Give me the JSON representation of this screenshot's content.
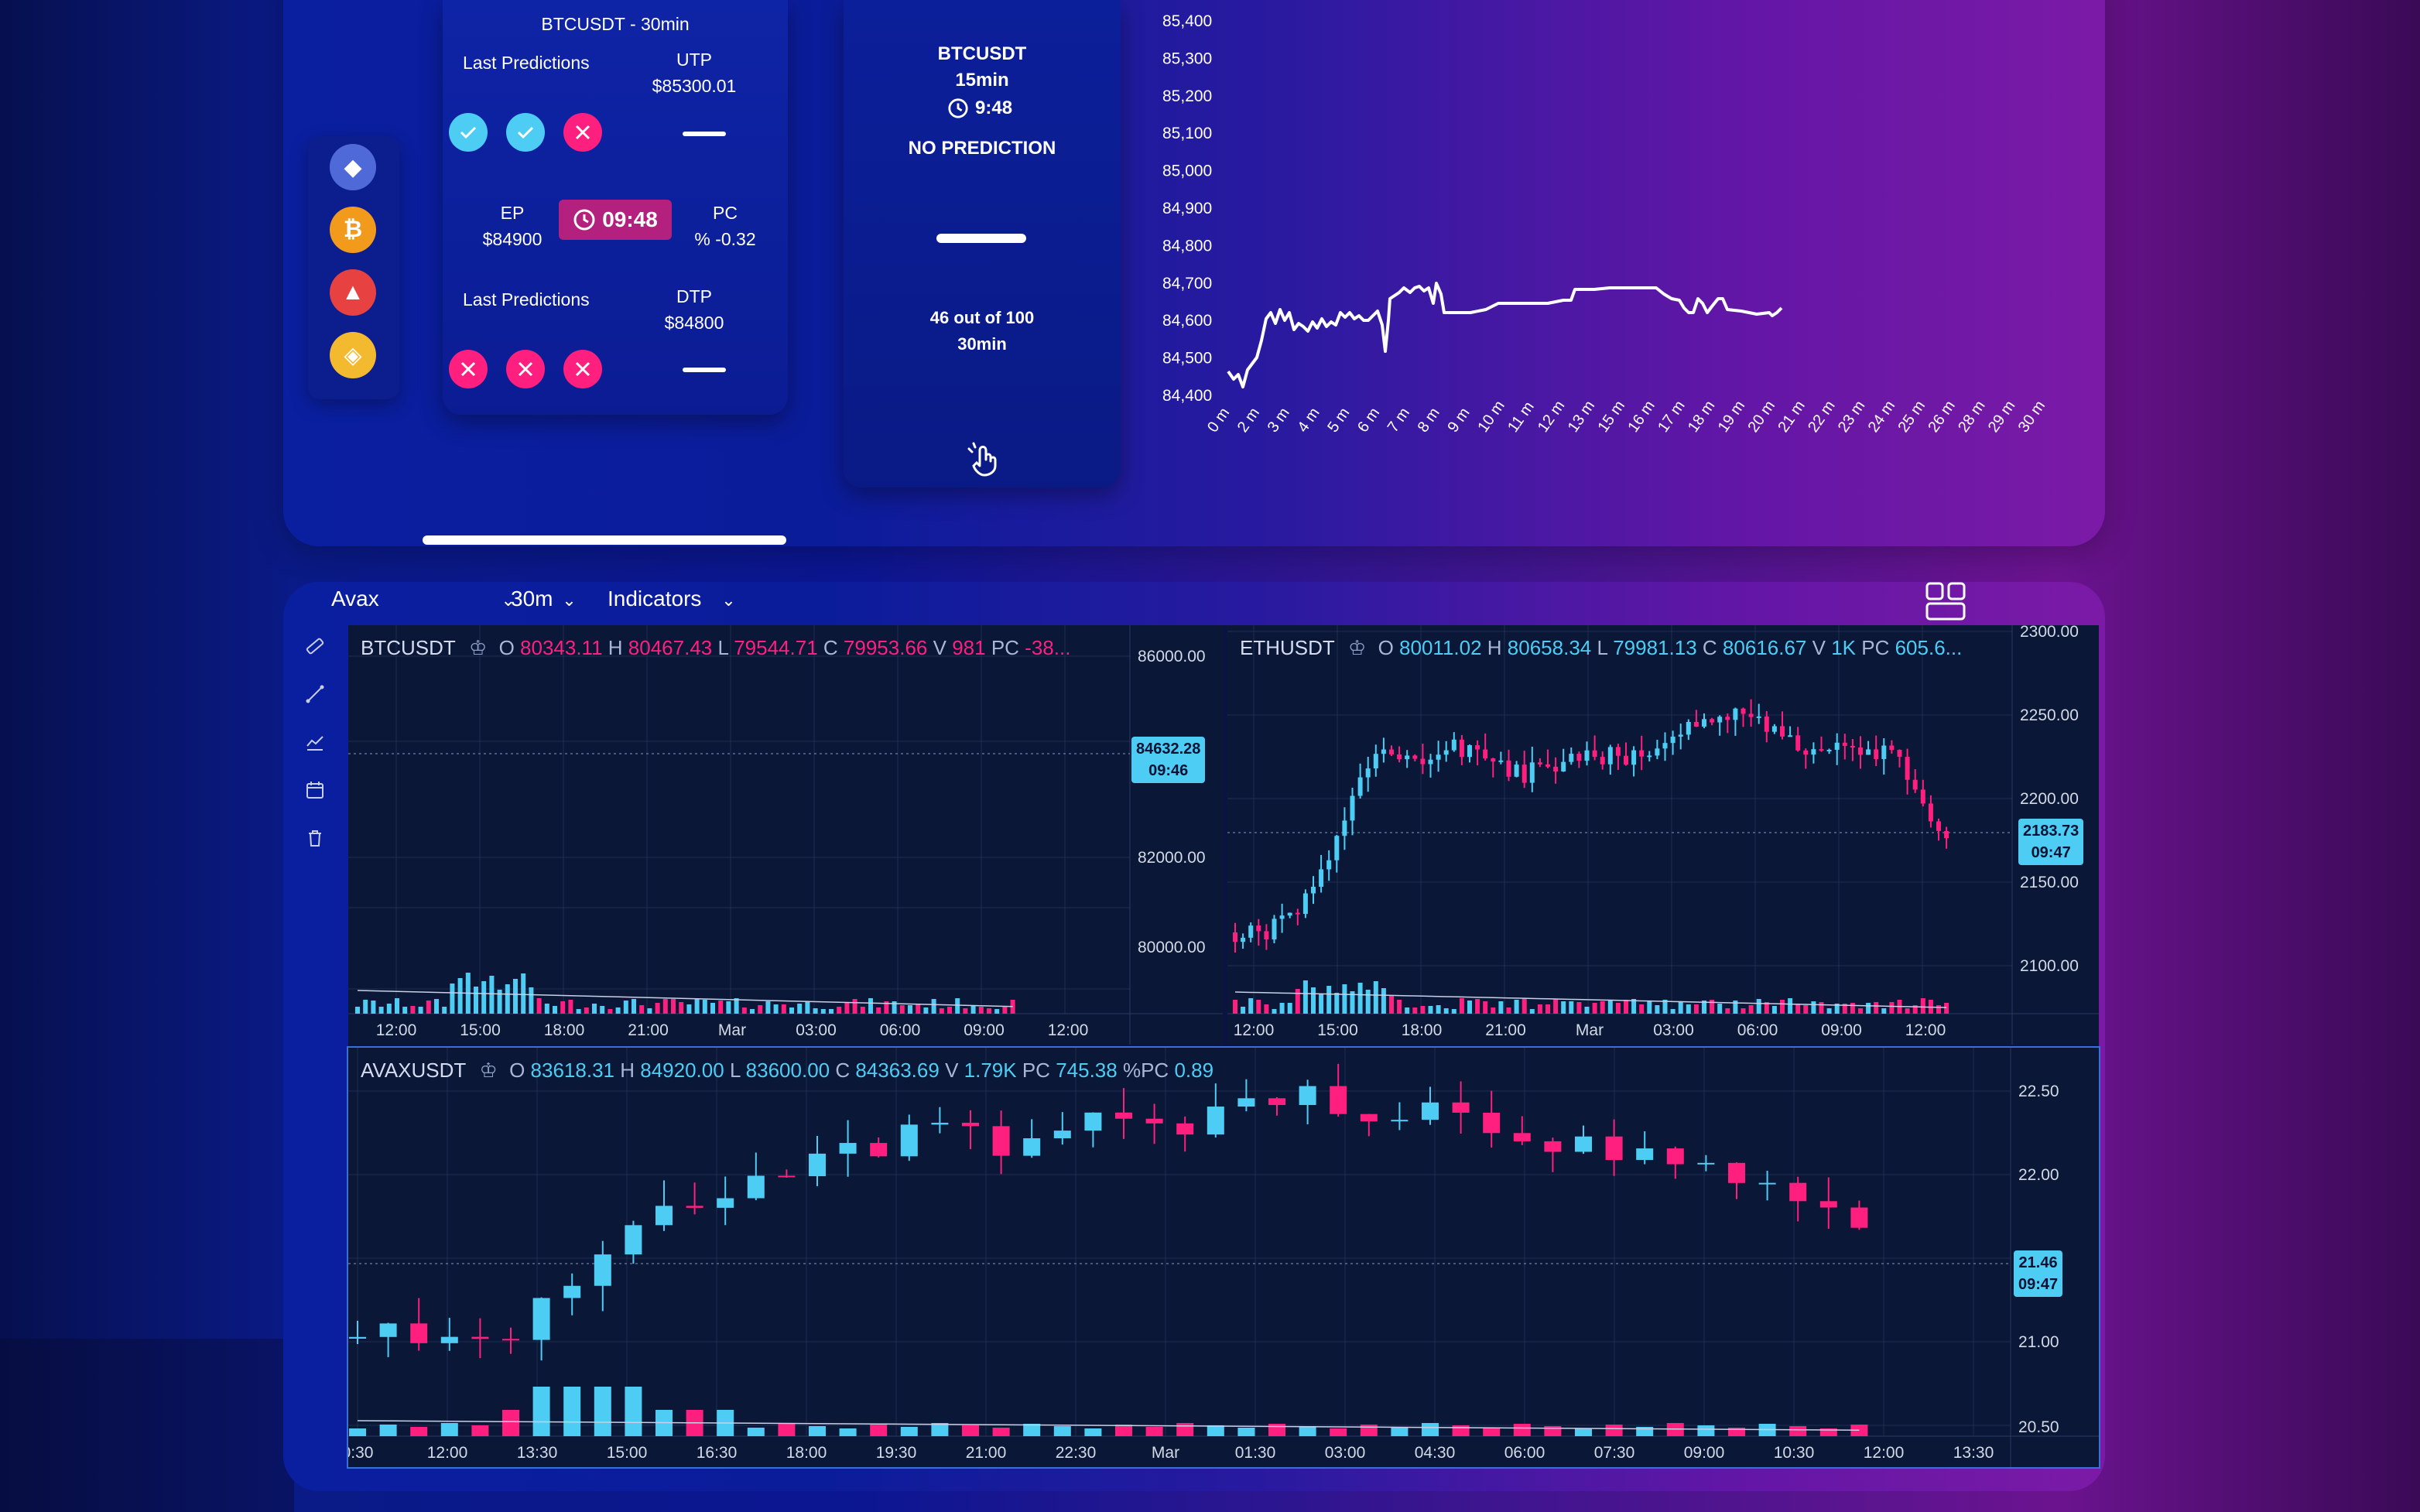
{
  "colors": {
    "up": "#4ecdf4",
    "down": "#ff1f7f",
    "timer_bg": "#b4207e"
  },
  "coins": [
    {
      "name": "ethereum-icon",
      "bg": "#4f6ad8",
      "glyph": "◆"
    },
    {
      "name": "bitcoin-icon",
      "bg": "#f29a1c",
      "glyph": "₿"
    },
    {
      "name": "avalanche-icon",
      "bg": "#e84142",
      "glyph": "▲"
    },
    {
      "name": "bnb-icon",
      "bg": "#f3ba2f",
      "glyph": "◈"
    }
  ],
  "prediction_card": {
    "title": "BTCUSDT - 30min",
    "last_predictions_label_1": "Last Predictions",
    "utp_label": "UTP",
    "utp_value": "$85300.01",
    "badges_row_1": [
      "ok",
      "ok",
      "no"
    ],
    "ep_label": "EP",
    "ep_value": "$84900",
    "timer": "09:48",
    "pc_label": "PC",
    "pc_value": "% -0.32",
    "last_predictions_label_2": "Last Predictions",
    "dtp_label": "DTP",
    "dtp_value": "$84800",
    "badges_row_2": [
      "no",
      "no",
      "no"
    ]
  },
  "no_prediction_card": {
    "symbol": "BTCUSDT",
    "interval": "15min",
    "time": "9:48",
    "status": "NO PREDICTION",
    "count_text": "46 out of 100",
    "count_interval": "30min"
  },
  "top_chart": {
    "y_ticks": [
      "85,400",
      "85,300",
      "85,200",
      "85,100",
      "85,000",
      "84,900",
      "84,800",
      "84,700",
      "84,600",
      "84,500",
      "84,400"
    ],
    "x_ticks": [
      "0 m",
      "2 m",
      "3 m",
      "4 m",
      "5 m",
      "6 m",
      "7 m",
      "8 m",
      "9 m",
      "10 m",
      "11 m",
      "12 m",
      "13 m",
      "15 m",
      "16 m",
      "17 m",
      "18 m",
      "19 m",
      "20 m",
      "21 m",
      "22 m",
      "23 m",
      "24 m",
      "25 m",
      "26 m",
      "28 m",
      "29 m",
      "30 m"
    ]
  },
  "toolbar": {
    "symbol": "Avax",
    "interval": "30m",
    "indicators": "Indicators"
  },
  "btc_pane": {
    "symbol": "BTCUSDT",
    "o": "80343.11",
    "h": "80467.43",
    "l": "79544.71",
    "c": "79953.66",
    "v": "981",
    "pc": "-38...",
    "y_ticks": [
      "86000.00",
      "82000.00",
      "80000.00"
    ],
    "price_tag": "84632.28",
    "price_time": "09:46",
    "x_ticks": [
      "12:00",
      "15:00",
      "18:00",
      "21:00",
      "Mar",
      "03:00",
      "06:00",
      "09:00",
      "12:00"
    ]
  },
  "eth_pane": {
    "symbol": "ETHUSDT",
    "o": "80011.02",
    "h": "80658.34",
    "l": "79981.13",
    "c": "80616.67",
    "v": "1K",
    "pc": "605.6...",
    "y_ticks": [
      "2300.00",
      "2250.00",
      "2200.00",
      "2150.00",
      "2100.00"
    ],
    "price_tag": "2183.73",
    "price_time": "09:47",
    "x_ticks": [
      "12:00",
      "15:00",
      "18:00",
      "21:00",
      "Mar",
      "03:00",
      "06:00",
      "09:00",
      "12:00"
    ]
  },
  "avax_pane": {
    "symbol": "AVAXUSDT",
    "o": "83618.31",
    "h": "84920.00",
    "l": "83600.00",
    "c": "84363.69",
    "v": "1.79K",
    "pc": "745.38",
    "pct": "0.89",
    "y_ticks": [
      "22.50",
      "22.00",
      "21.00",
      "20.50"
    ],
    "price_tag": "21.46",
    "price_time": "09:47",
    "x_ticks": [
      "0:30",
      "12:00",
      "13:30",
      "15:00",
      "16:30",
      "18:00",
      "19:30",
      "21:00",
      "22:30",
      "Mar",
      "01:30",
      "03:00",
      "04:30",
      "06:00",
      "07:30",
      "09:00",
      "10:30",
      "12:00",
      "13:30"
    ]
  },
  "labels": {
    "o": "O",
    "h": "H",
    "l": "L",
    "c": "C",
    "v": "V",
    "pc": "PC",
    "pct": "%PC"
  }
}
